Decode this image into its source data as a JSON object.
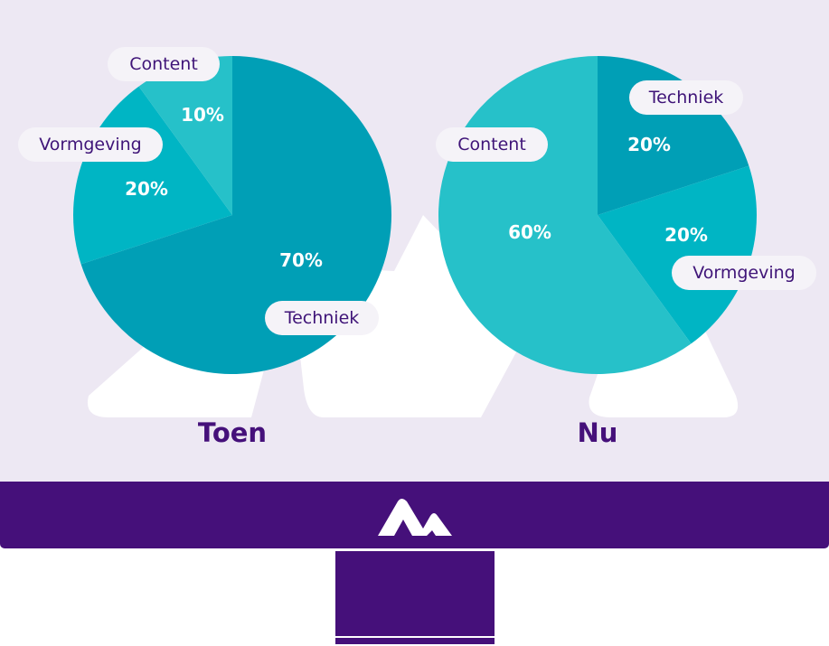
{
  "colors": {
    "screen_bg": "#ede8f3",
    "bezel": "#45107a",
    "stand": "#45107a",
    "bg_shapes": "#ffffff",
    "techniek": "#009fb6",
    "vormgeving": "#00b5c4",
    "content": "#26c1c9",
    "pill_bg": "#f5f3f8",
    "pill_text": "#3f1478",
    "title_text": "#45107a"
  },
  "logo": {
    "icon": "brand-logo-icon"
  },
  "chart_data": [
    {
      "type": "pie",
      "title": "Toen",
      "slices": [
        {
          "name": "Techniek",
          "value": 70,
          "label": "70%"
        },
        {
          "name": "Vormgeving",
          "value": 20,
          "label": "20%"
        },
        {
          "name": "Content",
          "value": 10,
          "label": "10%"
        }
      ]
    },
    {
      "type": "pie",
      "title": "Nu",
      "slices": [
        {
          "name": "Techniek",
          "value": 20,
          "label": "20%"
        },
        {
          "name": "Vormgeving",
          "value": 20,
          "label": "20%"
        },
        {
          "name": "Content",
          "value": 60,
          "label": "60%"
        }
      ]
    }
  ]
}
